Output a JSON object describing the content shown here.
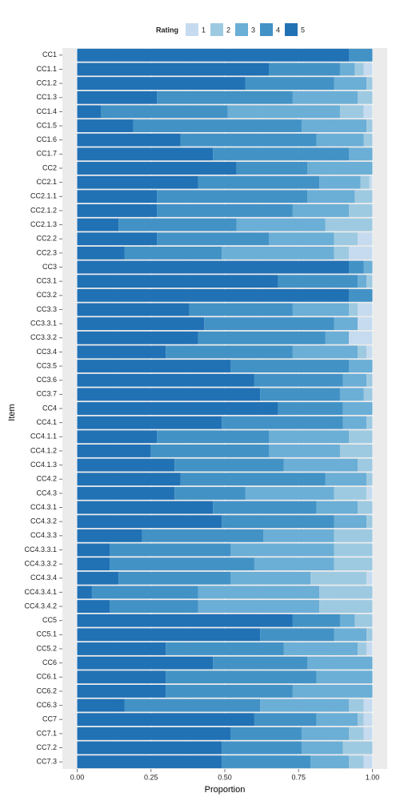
{
  "chart_data": {
    "type": "stacked-barh",
    "x_label": "Proportion",
    "y_label": "Item",
    "legend_title": "Rating",
    "legend": "top",
    "grid": true,
    "categories": [
      "CC1",
      "CC1.1",
      "CC1.2",
      "CC1.3",
      "CC1.4",
      "CC1.5",
      "CC1.6",
      "CC1.7",
      "CC2",
      "CC2.1",
      "CC2.1.1",
      "CC2.1.2",
      "CC2.1.3",
      "CC2.2",
      "CC2.3",
      "CC3",
      "CC3.1",
      "CC3.2",
      "CC3.3",
      "CC3.3.1",
      "CC3.3.2",
      "CC3.4",
      "CC3.5",
      "CC3.6",
      "CC3.7",
      "CC4",
      "CC4.1",
      "CC4.1.1",
      "CC4.1.2",
      "CC4.1.3",
      "CC4.2",
      "CC4.3",
      "CC4.3.1",
      "CC4.3.2",
      "CC4.3.3",
      "CC4.3.3.1",
      "CC4.3.3.2",
      "CC4.3.4",
      "CC4.3.4.1",
      "CC4.3.4.2",
      "CC5",
      "CC5.1",
      "CC5.2",
      "CC6",
      "CC6.1",
      "CC6.2",
      "CC6.3",
      "CC7",
      "CC7.1",
      "CC7.2",
      "CC7.3"
    ],
    "series": [
      {
        "name": "1",
        "color": "#c6dbef",
        "values": [
          0,
          0.03,
          0,
          0,
          0.03,
          0,
          0,
          0,
          0,
          0.01,
          0,
          0,
          0,
          0.05,
          0.08,
          0,
          0,
          0,
          0.05,
          0.05,
          0.08,
          0.02,
          0,
          0,
          0,
          0,
          0,
          0,
          0,
          0,
          0,
          0.02,
          0,
          0,
          0,
          0,
          0,
          0.02,
          0,
          0,
          0,
          0,
          0.02,
          0,
          0,
          0,
          0.03,
          0.03,
          0.03,
          0,
          0.03
        ]
      },
      {
        "name": "2",
        "color": "#9ecae1",
        "values": [
          0,
          0.03,
          0.02,
          0.05,
          0.08,
          0.02,
          0.03,
          0,
          0,
          0.03,
          0.06,
          0.08,
          0.16,
          0.08,
          0.05,
          0,
          0.02,
          0,
          0.03,
          0,
          0,
          0.03,
          0,
          0.02,
          0.03,
          0,
          0.02,
          0.08,
          0.11,
          0.05,
          0.02,
          0.11,
          0.05,
          0.02,
          0.13,
          0.13,
          0.13,
          0.19,
          0.18,
          0.18,
          0.06,
          0.02,
          0.03,
          0,
          0,
          0,
          0.05,
          0.02,
          0.05,
          0.1,
          0.05
        ]
      },
      {
        "name": "3",
        "color": "#6baed6",
        "values": [
          0,
          0.05,
          0.11,
          0.22,
          0.38,
          0.22,
          0.16,
          0.08,
          0.22,
          0.14,
          0.16,
          0.19,
          0.3,
          0.22,
          0.38,
          0.03,
          0.03,
          0,
          0.19,
          0.08,
          0.08,
          0.22,
          0.08,
          0.08,
          0.08,
          0.1,
          0.08,
          0.27,
          0.24,
          0.25,
          0.14,
          0.3,
          0.14,
          0.11,
          0.24,
          0.35,
          0.27,
          0.27,
          0.41,
          0.41,
          0.05,
          0.11,
          0.25,
          0.22,
          0.19,
          0.27,
          0.3,
          0.14,
          0.16,
          0.14,
          0.13
        ]
      },
      {
        "name": "4",
        "color": "#4292c6",
        "values": [
          0.08,
          0.24,
          0.3,
          0.46,
          0.43,
          0.57,
          0.46,
          0.46,
          0.24,
          0.41,
          0.51,
          0.46,
          0.4,
          0.38,
          0.33,
          0.05,
          0.27,
          0.08,
          0.35,
          0.44,
          0.43,
          0.43,
          0.4,
          0.3,
          0.27,
          0.22,
          0.41,
          0.38,
          0.4,
          0.37,
          0.49,
          0.24,
          0.35,
          0.38,
          0.41,
          0.41,
          0.49,
          0.38,
          0.36,
          0.3,
          0.16,
          0.25,
          0.4,
          0.32,
          0.51,
          0.43,
          0.46,
          0.21,
          0.24,
          0.27,
          0.3
        ]
      },
      {
        "name": "5",
        "color": "#2171b5",
        "values": [
          0.92,
          0.65,
          0.57,
          0.27,
          0.08,
          0.19,
          0.35,
          0.46,
          0.54,
          0.41,
          0.27,
          0.27,
          0.14,
          0.27,
          0.16,
          0.92,
          0.68,
          0.92,
          0.38,
          0.43,
          0.41,
          0.3,
          0.52,
          0.6,
          0.62,
          0.68,
          0.49,
          0.27,
          0.25,
          0.33,
          0.35,
          0.33,
          0.46,
          0.49,
          0.22,
          0.11,
          0.11,
          0.14,
          0.05,
          0.11,
          0.73,
          0.62,
          0.3,
          0.46,
          0.3,
          0.3,
          0.16,
          0.6,
          0.52,
          0.49,
          0.49
        ]
      }
    ],
    "xlim": [
      -0.05,
      1.05
    ],
    "xticks": [
      {
        "value": 0,
        "label": "0.00"
      },
      {
        "value": 0.25,
        "label": "0.25"
      },
      {
        "value": 0.5,
        "label": "0.50"
      },
      {
        "value": 0.75,
        "label": "0.75"
      },
      {
        "value": 1,
        "label": "1.00"
      }
    ]
  }
}
